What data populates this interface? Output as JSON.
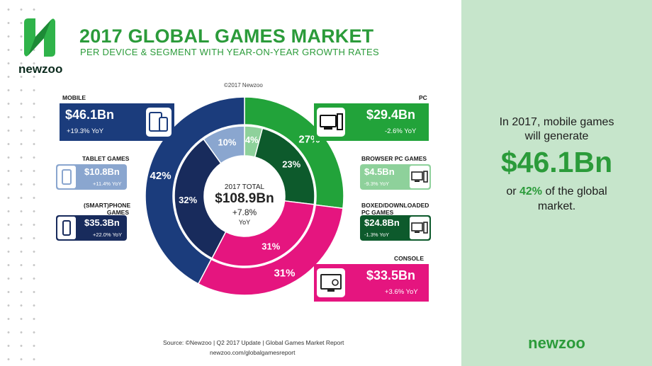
{
  "header": {
    "title": "2017 GLOBAL GAMES MARKET",
    "subtitle": "PER DEVICE & SEGMENT WITH YEAR-ON-YEAR GROWTH RATES",
    "logo_text": "newzoo",
    "copyright": "©2017 Newzoo"
  },
  "cards": {
    "mobile": {
      "label": "MOBILE",
      "value": "$46.1Bn",
      "yoy": "+19.3% YoY"
    },
    "tablet": {
      "label": "TABLET GAMES",
      "value": "$10.8Bn",
      "yoy": "+11.4% YoY"
    },
    "smartphone": {
      "label": "(SMART)PHONE GAMES",
      "value": "$35.3Bn",
      "yoy": "+22.0% YoY"
    },
    "pc": {
      "label": "PC",
      "value": "$29.4Bn",
      "yoy": "-2.6% YoY"
    },
    "browser": {
      "label": "BROWSER PC GAMES",
      "value": "$4.5Bn",
      "yoy": "-9.3% YoY"
    },
    "boxed": {
      "label": "BOXED/DOWNLOADED PC GAMES",
      "value": "$24.8Bn",
      "yoy": "-1.3% YoY"
    },
    "console": {
      "label": "CONSOLE",
      "value": "$33.5Bn",
      "yoy": "+3.6% YoY"
    }
  },
  "center": {
    "label": "2017 TOTAL",
    "value": "$108.9Bn",
    "growth": "+7.8%",
    "yoy": "YoY"
  },
  "colors": {
    "mobile": "#1b3c7c",
    "tablet": "#8aa6cf",
    "smartphone": "#182b5c",
    "pc": "#22a33a",
    "browser": "#8ed19b",
    "boxed": "#0d5a2c",
    "console": "#e5157f",
    "brand_green": "#2b9b3a"
  },
  "chart_data": {
    "type": "pie",
    "outer_ring": {
      "categories": [
        "PC",
        "Console",
        "Mobile"
      ],
      "values": [
        29.4,
        33.5,
        46.1
      ],
      "percent_labels": [
        "27%",
        "31%",
        "42%"
      ]
    },
    "inner_ring": {
      "categories": [
        "Browser PC Games",
        "Boxed/Downloaded PC Games",
        "Console",
        "(Smart)phone Games",
        "Tablet Games"
      ],
      "values": [
        4.5,
        24.8,
        33.5,
        35.3,
        10.8
      ],
      "percent_labels": [
        "4%",
        "23%",
        "31%",
        "32%",
        "10%"
      ]
    },
    "total": 108.9
  },
  "footer": {
    "source": "Source: ©Newzoo | Q2 2017 Update | Global Games Market Report",
    "url": "newzoo.com/globalgamesreport"
  },
  "panel": {
    "line1": "In 2017, mobile games",
    "line2": "will generate",
    "big": "$46.1Bn",
    "line3_pre": "or",
    "line3_pct": "42%",
    "line3_post": "of the global",
    "line4": "market.",
    "brand": "newzoo"
  }
}
